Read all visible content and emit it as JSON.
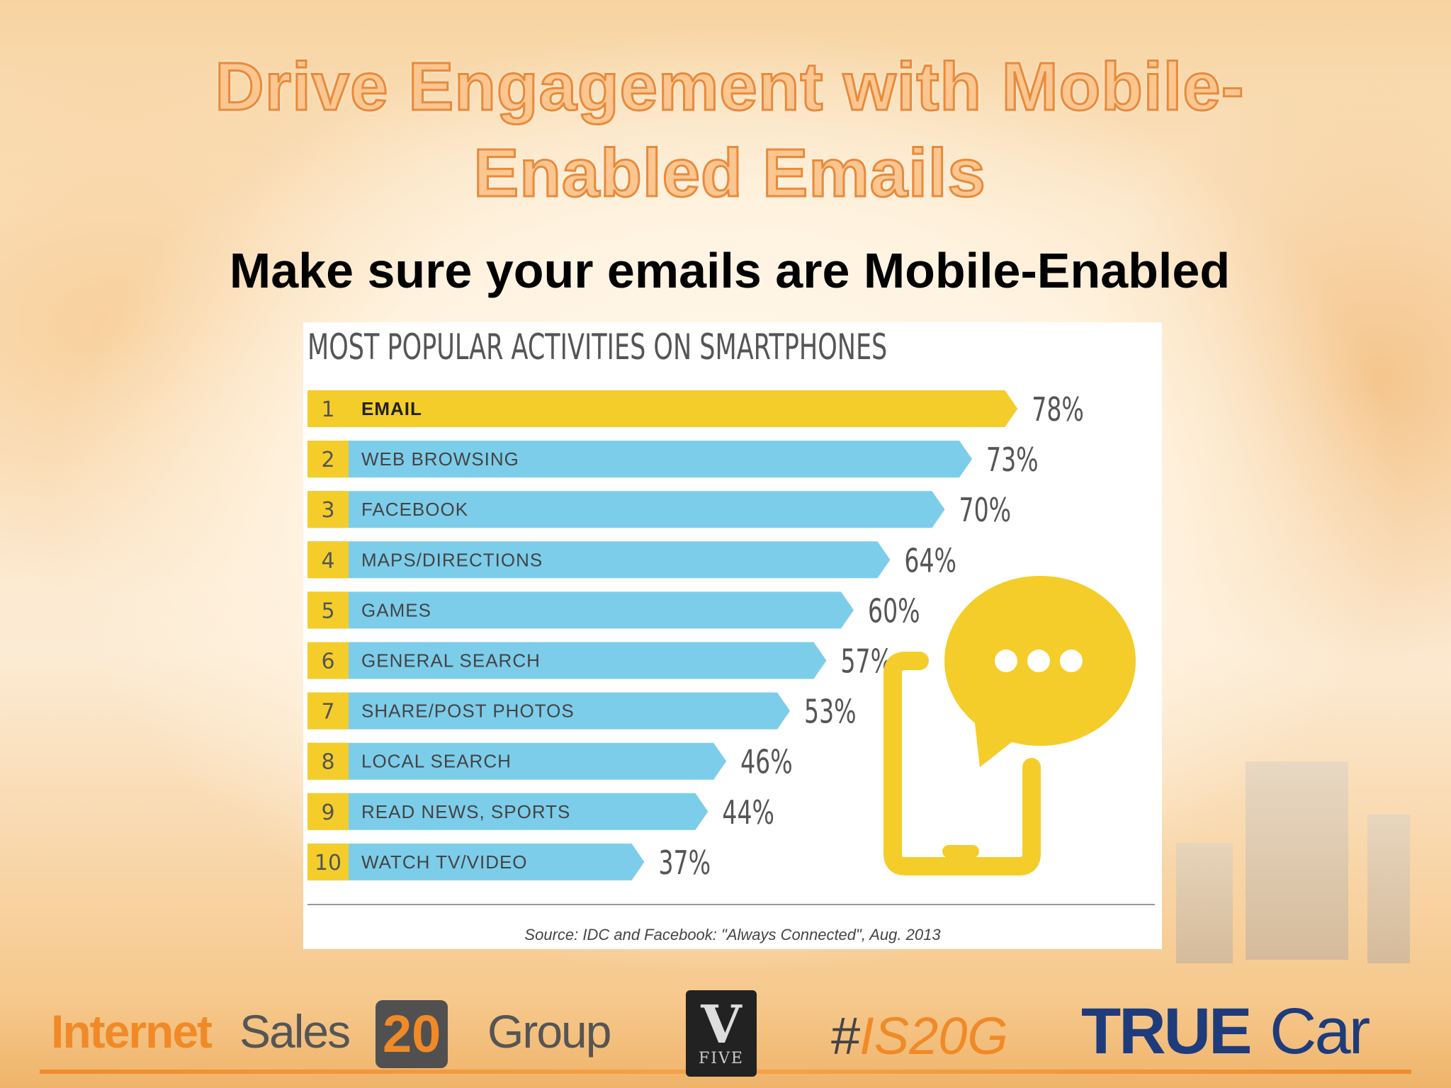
{
  "slide": {
    "title_line1": "Drive Engagement with Mobile-",
    "title_line2": "Enabled Emails",
    "subtitle": "Make sure your emails are Mobile-Enabled"
  },
  "chart_data": {
    "type": "bar",
    "orientation": "horizontal",
    "title": "MOST POPULAR ACTIVITIES ON SMARTPHONES",
    "ranks": [
      "1",
      "2",
      "3",
      "4",
      "5",
      "6",
      "7",
      "8",
      "9",
      "10"
    ],
    "categories": [
      "EMAIL",
      "WEB BROWSING",
      "FACEBOOK",
      "MAPS/DIRECTIONS",
      "GAMES",
      "GENERAL SEARCH",
      "SHARE/POST PHOTOS",
      "LOCAL SEARCH",
      "READ NEWS, SPORTS",
      "WATCH TV/VIDEO"
    ],
    "values": [
      78,
      73,
      70,
      64,
      60,
      57,
      53,
      46,
      44,
      37
    ],
    "value_labels": [
      "78%",
      "73%",
      "70%",
      "64%",
      "60%",
      "57%",
      "53%",
      "46%",
      "44%",
      "37%"
    ],
    "value_unit": "%",
    "highlight_index": 0,
    "colors": {
      "highlight": "#f5cd2a",
      "bar": "#7ccdea",
      "rank_box": "#f5cd2a"
    },
    "source": "Source: IDC and Facebook: \"Always Connected\", Aug. 2013"
  },
  "illustration": {
    "icon": "smartphone-chat-bubble-icon",
    "color": "#f5cd2a"
  },
  "footer": {
    "internet": "Internet",
    "sales": "Sales",
    "twenty": "20",
    "group": "Group",
    "v_letter": "V",
    "v_five": "FIVE",
    "hashtag_hash": "#",
    "hashtag_rest": "IS20G",
    "true": "TRUE",
    "car": "Car",
    "accent_color": "#f08a27",
    "truecar_color": "#1e3c7c"
  }
}
